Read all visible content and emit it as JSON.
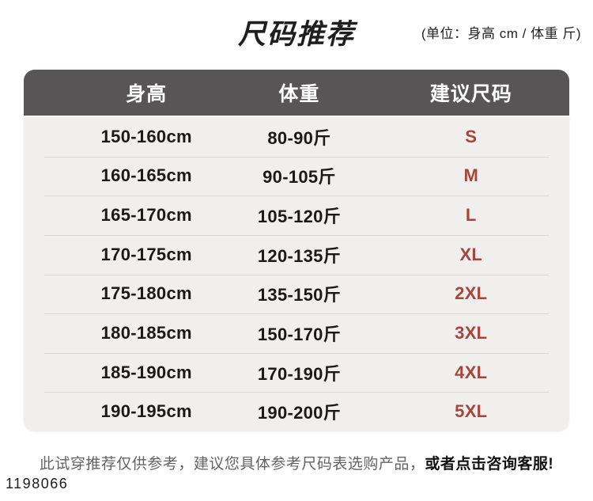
{
  "title": {
    "text": "尺码推荐",
    "unit_note": "(单位：身高 cm / 体重 斤)"
  },
  "table": {
    "headers": [
      "身高",
      "体重",
      "建议尺码"
    ],
    "rows": [
      {
        "height": "150-160cm",
        "weight": "80-90斤",
        "size": "S"
      },
      {
        "height": "160-165cm",
        "weight": "90-105斤",
        "size": "M"
      },
      {
        "height": "165-170cm",
        "weight": "105-120斤",
        "size": "L"
      },
      {
        "height": "170-175cm",
        "weight": "120-135斤",
        "size": "XL"
      },
      {
        "height": "175-180cm",
        "weight": "135-150斤",
        "size": "2XL"
      },
      {
        "height": "180-185cm",
        "weight": "150-170斤",
        "size": "3XL"
      },
      {
        "height": "185-190cm",
        "weight": "170-190斤",
        "size": "4XL"
      },
      {
        "height": "190-195cm",
        "weight": "190-200斤",
        "size": "5XL"
      }
    ]
  },
  "footer": {
    "disclaimer": "此试穿推荐仅供参考，建议您具体参考尺码表选购产品，",
    "cta": "或者点击咨询客服!"
  },
  "watermark": "1198066",
  "colors": {
    "header_bg": "#575555",
    "body_bg": "#f0efee",
    "size_text": "#a4463b"
  }
}
